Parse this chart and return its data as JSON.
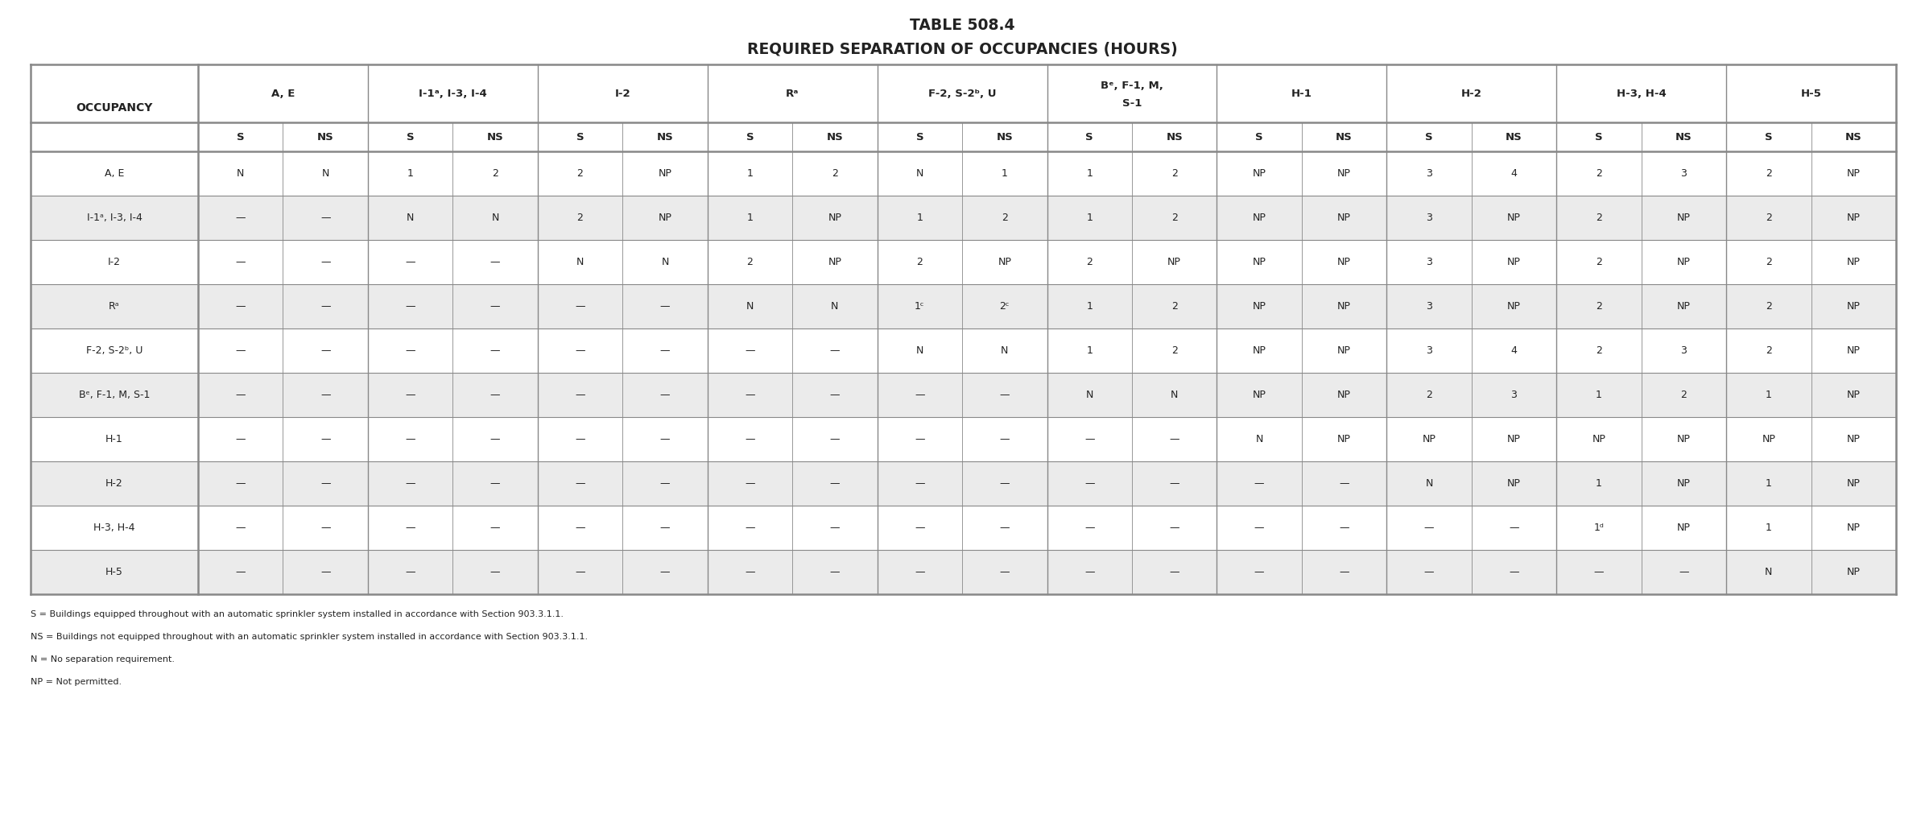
{
  "title1": "TABLE 508.4",
  "title2": "REQUIRED SEPARATION OF OCCUPANCIES (HOURS)",
  "bg_color": "#ffffff",
  "border_color": "#888888",
  "text_color": "#222222",
  "alt_row_bg": "#ebebeb",
  "header_bg": "#ffffff",
  "footnotes": [
    "S = Buildings equipped throughout with an automatic sprinkler system installed in accordance with Section 903.3.1.1.",
    "NS = Buildings not equipped throughout with an automatic sprinkler system installed in accordance with Section 903.3.1.1.",
    "N = No separation requirement.",
    "NP = Not permitted."
  ],
  "group_headers": [
    "A, E",
    "I-1ᵃ, I-3, I-4",
    "I-2",
    "Rᵃ",
    "F-2, S-2ᵇ, U",
    "Bᵉ, F-1, M,\nS-1",
    "H-1",
    "H-2",
    "H-3, H-4",
    "H-5"
  ],
  "row_labels": [
    "A, E",
    "I-1ᵃ, I-3, I-4",
    "I-2",
    "Rᵃ",
    "F-2, S-2ᵇ, U",
    "Bᵉ, F-1, M, S-1",
    "H-1",
    "H-2",
    "H-3, H-4",
    "H-5"
  ],
  "table_data": [
    [
      "N",
      "N",
      "1",
      "2",
      "2",
      "NP",
      "1",
      "2",
      "N",
      "1",
      "1",
      "2",
      "NP",
      "NP",
      "3",
      "4",
      "2",
      "3",
      "2",
      "NP"
    ],
    [
      "—",
      "—",
      "N",
      "N",
      "2",
      "NP",
      "1",
      "NP",
      "1",
      "2",
      "1",
      "2",
      "NP",
      "NP",
      "3",
      "NP",
      "2",
      "NP",
      "2",
      "NP"
    ],
    [
      "—",
      "—",
      "—",
      "—",
      "N",
      "N",
      "2",
      "NP",
      "2",
      "NP",
      "2",
      "NP",
      "NP",
      "NP",
      "3",
      "NP",
      "2",
      "NP",
      "2",
      "NP"
    ],
    [
      "—",
      "—",
      "—",
      "—",
      "—",
      "—",
      "N",
      "N",
      "1ᶜ",
      "2ᶜ",
      "1",
      "2",
      "NP",
      "NP",
      "3",
      "NP",
      "2",
      "NP",
      "2",
      "NP"
    ],
    [
      "—",
      "—",
      "—",
      "—",
      "—",
      "—",
      "—",
      "—",
      "N",
      "N",
      "1",
      "2",
      "NP",
      "NP",
      "3",
      "4",
      "2",
      "3",
      "2",
      "NP"
    ],
    [
      "—",
      "—",
      "—",
      "—",
      "—",
      "—",
      "—",
      "—",
      "—",
      "—",
      "N",
      "N",
      "NP",
      "NP",
      "2",
      "3",
      "1",
      "2",
      "1",
      "NP"
    ],
    [
      "—",
      "—",
      "—",
      "—",
      "—",
      "—",
      "—",
      "—",
      "—",
      "—",
      "—",
      "—",
      "N",
      "NP",
      "NP",
      "NP",
      "NP",
      "NP",
      "NP",
      "NP"
    ],
    [
      "—",
      "—",
      "—",
      "—",
      "—",
      "—",
      "—",
      "—",
      "—",
      "—",
      "—",
      "—",
      "—",
      "—",
      "N",
      "NP",
      "1",
      "NP",
      "1",
      "NP"
    ],
    [
      "—",
      "—",
      "—",
      "—",
      "—",
      "—",
      "—",
      "—",
      "—",
      "—",
      "—",
      "—",
      "—",
      "—",
      "—",
      "—",
      "1ᵈ",
      "NP",
      "1",
      "NP"
    ],
    [
      "—",
      "—",
      "—",
      "—",
      "—",
      "—",
      "—",
      "—",
      "—",
      "—",
      "—",
      "—",
      "—",
      "—",
      "—",
      "—",
      "—",
      "—",
      "N",
      "NP"
    ]
  ]
}
